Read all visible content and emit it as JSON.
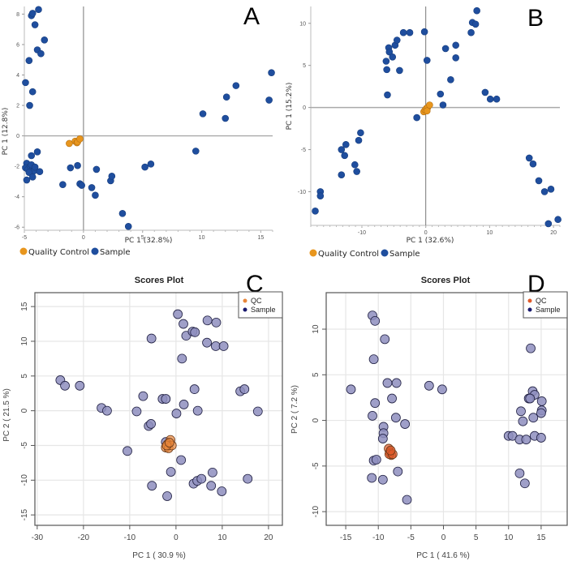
{
  "chart_data": [
    {
      "panel": "A",
      "type": "scatter",
      "title": "",
      "xlabel": "PC 1 (32.8%)",
      "ylabel": "PC 1 (12.8%)",
      "xlim": [
        -5,
        16
      ],
      "ylim": [
        -6.2,
        8.5
      ],
      "xticks": [
        -5,
        0,
        5,
        10,
        15
      ],
      "yticks": [
        -6,
        -4,
        -2,
        0,
        2,
        4,
        6,
        8
      ],
      "grid": false,
      "zero_lines": true,
      "legend": "bottom",
      "series": [
        {
          "name": "Quality Control",
          "color": "#E8961E",
          "points": [
            [
              -1.2,
              -0.5
            ],
            [
              -0.7,
              -0.35
            ],
            [
              -0.55,
              -0.45
            ],
            [
              -0.5,
              -0.4
            ],
            [
              -0.3,
              -0.2
            ]
          ]
        },
        {
          "name": "Sample",
          "color": "#1F4E9E",
          "points": [
            [
              -4.4,
              7.9
            ],
            [
              -4.3,
              8.05
            ],
            [
              -3.8,
              8.3
            ],
            [
              -4.1,
              7.3
            ],
            [
              -3.3,
              6.3
            ],
            [
              -3.9,
              5.65
            ],
            [
              -3.6,
              5.4
            ],
            [
              -4.6,
              4.95
            ],
            [
              -4.9,
              3.5
            ],
            [
              -4.3,
              2.9
            ],
            [
              -4.55,
              2.0
            ],
            [
              -4.4,
              -1.3
            ],
            [
              -3.9,
              -1.05
            ],
            [
              -4.8,
              -1.8
            ],
            [
              -4.9,
              -2.1
            ],
            [
              -4.7,
              -2.2
            ],
            [
              -4.5,
              -2.0
            ],
            [
              -4.3,
              -2.1
            ],
            [
              -4.2,
              -2.3
            ],
            [
              -4.6,
              -2.4
            ],
            [
              -4.4,
              -1.9
            ],
            [
              -4.1,
              -2.05
            ],
            [
              -3.7,
              -2.35
            ],
            [
              -4.3,
              -2.7
            ],
            [
              -4.8,
              -2.9
            ],
            [
              -1.1,
              -2.1
            ],
            [
              -0.5,
              -1.95
            ],
            [
              -1.75,
              -3.2
            ],
            [
              -0.3,
              -3.15
            ],
            [
              -0.15,
              -3.25
            ],
            [
              0.7,
              -3.4
            ],
            [
              1.0,
              -3.9
            ],
            [
              1.1,
              -2.2
            ],
            [
              2.3,
              -2.95
            ],
            [
              2.4,
              -2.65
            ],
            [
              3.3,
              -5.1
            ],
            [
              3.8,
              -5.95
            ],
            [
              5.2,
              -2.05
            ],
            [
              5.7,
              -1.85
            ],
            [
              9.5,
              -1.0
            ],
            [
              10.1,
              1.45
            ],
            [
              12.0,
              1.15
            ],
            [
              12.1,
              2.55
            ],
            [
              12.9,
              3.3
            ],
            [
              15.7,
              2.35
            ],
            [
              15.9,
              4.15
            ]
          ]
        }
      ]
    },
    {
      "panel": "B",
      "type": "scatter",
      "title": "",
      "xlabel": "PC 1 (32.6%)",
      "ylabel": "PC 1 (15.2%)",
      "xlim": [
        -18,
        21
      ],
      "ylim": [
        -14,
        12
      ],
      "xticks": [
        -10,
        0,
        10,
        20
      ],
      "yticks": [
        -10,
        -5,
        0,
        5,
        10
      ],
      "grid": false,
      "zero_lines": true,
      "legend": "bottom",
      "series": [
        {
          "name": "Quality Control",
          "color": "#E8961E",
          "points": [
            [
              -0.3,
              -0.5
            ],
            [
              -0.1,
              -0.3
            ],
            [
              0.1,
              -0.1
            ],
            [
              0.3,
              0.0
            ],
            [
              0.6,
              0.3
            ],
            [
              0.2,
              -0.4
            ]
          ]
        },
        {
          "name": "Sample",
          "color": "#1F4E9E",
          "points": [
            [
              -6.2,
              5.5
            ],
            [
              -6.1,
              4.5
            ],
            [
              -5.8,
              7.1
            ],
            [
              -5.7,
              6.6
            ],
            [
              -5.2,
              6.0
            ],
            [
              -4.8,
              7.4
            ],
            [
              -4.5,
              8.0
            ],
            [
              -4.1,
              4.4
            ],
            [
              -3.5,
              8.9
            ],
            [
              -2.5,
              8.9
            ],
            [
              -0.2,
              9.0
            ],
            [
              0.2,
              5.6
            ],
            [
              -6.0,
              1.5
            ],
            [
              -1.4,
              -1.2
            ],
            [
              2.3,
              1.6
            ],
            [
              2.7,
              0.3
            ],
            [
              3.1,
              7.0
            ],
            [
              3.9,
              3.3
            ],
            [
              4.7,
              7.4
            ],
            [
              4.7,
              5.9
            ],
            [
              7.1,
              8.9
            ],
            [
              7.3,
              10.1
            ],
            [
              7.8,
              9.9
            ],
            [
              8.0,
              11.5
            ],
            [
              9.3,
              1.8
            ],
            [
              10.1,
              1.0
            ],
            [
              11.1,
              1.0
            ],
            [
              -10.2,
              -3.0
            ],
            [
              -10.5,
              -3.9
            ],
            [
              -12.5,
              -4.4
            ],
            [
              -13.2,
              -5.0
            ],
            [
              -12.7,
              -5.7
            ],
            [
              -11.1,
              -6.8
            ],
            [
              -10.8,
              -7.6
            ],
            [
              -13.2,
              -8.0
            ],
            [
              -16.5,
              -10.0
            ],
            [
              -16.5,
              -10.5
            ],
            [
              -17.3,
              -12.3
            ],
            [
              16.2,
              -6.0
            ],
            [
              16.8,
              -6.7
            ],
            [
              17.7,
              -8.7
            ],
            [
              18.6,
              -10.0
            ],
            [
              19.6,
              -9.7
            ],
            [
              19.2,
              -13.8
            ],
            [
              20.7,
              -13.3
            ]
          ]
        }
      ]
    },
    {
      "panel": "C",
      "type": "scatter",
      "title": "Scores Plot",
      "xlabel": "PC 1 ( 30.9 %)",
      "ylabel": "PC 2 ( 21.5 %)",
      "xlim": [
        -30.5,
        23
      ],
      "ylim": [
        -16.5,
        17
      ],
      "xticks": [
        -30,
        -20,
        -10,
        0,
        10,
        20
      ],
      "yticks": [
        -15,
        -10,
        -5,
        0,
        5,
        10,
        15
      ],
      "grid": true,
      "legend": "top-right",
      "series": [
        {
          "name": "QC",
          "color": "#E8863A",
          "points": [
            [
              -1.2,
              -4.2
            ],
            [
              -1.8,
              -4.8
            ],
            [
              -2.2,
              -5.3
            ],
            [
              -1.6,
              -5.4
            ],
            [
              -0.9,
              -5.0
            ],
            [
              -2.0,
              -5.0
            ],
            [
              -1.4,
              -4.6
            ]
          ]
        },
        {
          "name": "Sample",
          "color": "#1A1A6E",
          "points": [
            [
              0.4,
              13.9
            ],
            [
              1.6,
              12.5
            ],
            [
              6.8,
              13.0
            ],
            [
              8.7,
              12.7
            ],
            [
              -5.3,
              10.4
            ],
            [
              2.2,
              10.8
            ],
            [
              3.6,
              11.4
            ],
            [
              4.1,
              11.3
            ],
            [
              6.7,
              9.8
            ],
            [
              8.6,
              9.3
            ],
            [
              10.3,
              9.3
            ],
            [
              1.3,
              7.5
            ],
            [
              -25.0,
              4.4
            ],
            [
              -24.0,
              3.6
            ],
            [
              -20.8,
              3.6
            ],
            [
              -7.1,
              2.1
            ],
            [
              -2.9,
              1.7
            ],
            [
              -2.2,
              1.7
            ],
            [
              4.0,
              3.1
            ],
            [
              1.7,
              0.9
            ],
            [
              13.9,
              2.8
            ],
            [
              14.8,
              3.1
            ],
            [
              -16.1,
              0.4
            ],
            [
              -14.9,
              0.0
            ],
            [
              -8.5,
              -0.1
            ],
            [
              0.1,
              -0.4
            ],
            [
              4.7,
              0.0
            ],
            [
              17.7,
              -0.1
            ],
            [
              -5.9,
              -2.2
            ],
            [
              -5.4,
              -1.9
            ],
            [
              -2.2,
              -4.5
            ],
            [
              -10.5,
              -5.8
            ],
            [
              1.1,
              -7.1
            ],
            [
              -1.1,
              -8.8
            ],
            [
              7.9,
              -8.9
            ],
            [
              3.8,
              -10.5
            ],
            [
              4.6,
              -10.1
            ],
            [
              5.5,
              -9.8
            ],
            [
              15.5,
              -9.8
            ],
            [
              -5.2,
              -10.8
            ],
            [
              7.6,
              -10.8
            ],
            [
              9.9,
              -11.6
            ],
            [
              -1.9,
              -12.3
            ]
          ]
        }
      ]
    },
    {
      "panel": "D",
      "type": "scatter",
      "title": "Scores Plot",
      "xlabel": "PC 1 ( 41.6 %)",
      "ylabel": "PC 2 ( 7.2 %)",
      "xlim": [
        -18,
        19
      ],
      "ylim": [
        -11.5,
        14
      ],
      "xticks": [
        -15,
        -10,
        -5,
        0,
        5,
        10,
        15
      ],
      "yticks": [
        -10,
        -5,
        0,
        5,
        10
      ],
      "grid": true,
      "legend": "top-right",
      "series": [
        {
          "name": "QC",
          "color": "#E05A2A",
          "points": [
            [
              -8.4,
              -3.1
            ],
            [
              -8.2,
              -3.5
            ],
            [
              -8.0,
              -3.8
            ],
            [
              -8.3,
              -3.7
            ],
            [
              -7.8,
              -3.7
            ],
            [
              -8.1,
              -3.3
            ]
          ]
        },
        {
          "name": "Sample",
          "color": "#1A1A6E",
          "points": [
            [
              -10.9,
              11.5
            ],
            [
              -10.5,
              10.9
            ],
            [
              -9.0,
              8.9
            ],
            [
              -10.7,
              6.7
            ],
            [
              -14.2,
              3.4
            ],
            [
              -8.6,
              4.1
            ],
            [
              -7.2,
              4.1
            ],
            [
              -2.2,
              3.8
            ],
            [
              -0.2,
              3.4
            ],
            [
              -10.5,
              1.9
            ],
            [
              -7.9,
              2.4
            ],
            [
              -10.9,
              0.5
            ],
            [
              -7.3,
              0.3
            ],
            [
              -5.9,
              -0.4
            ],
            [
              -9.2,
              -0.7
            ],
            [
              -9.2,
              -1.4
            ],
            [
              -9.3,
              -2.0
            ],
            [
              -10.7,
              -4.4
            ],
            [
              -10.3,
              -4.3
            ],
            [
              -11.0,
              -6.3
            ],
            [
              -9.3,
              -6.5
            ],
            [
              -7.0,
              -5.6
            ],
            [
              -5.6,
              -8.7
            ],
            [
              13.4,
              7.9
            ],
            [
              13.7,
              3.2
            ],
            [
              14.0,
              2.8
            ],
            [
              13.1,
              2.4
            ],
            [
              13.3,
              2.4
            ],
            [
              15.1,
              2.1
            ],
            [
              11.9,
              1.0
            ],
            [
              15.1,
              1.1
            ],
            [
              15.0,
              0.8
            ],
            [
              13.8,
              0.3
            ],
            [
              12.2,
              -0.1
            ],
            [
              10.0,
              -1.7
            ],
            [
              10.6,
              -1.7
            ],
            [
              11.7,
              -2.1
            ],
            [
              12.7,
              -2.1
            ],
            [
              14.0,
              -1.7
            ],
            [
              15.0,
              -1.9
            ],
            [
              11.7,
              -5.8
            ],
            [
              12.5,
              -6.9
            ]
          ]
        }
      ]
    }
  ],
  "panel_letters": [
    "A",
    "B",
    "C",
    "D"
  ],
  "legend_bottom": {
    "qc_label": "Quality Control",
    "sample_label": "Sample"
  },
  "legend_box": {
    "qc_label": "QC",
    "sample_label": "Sample"
  }
}
